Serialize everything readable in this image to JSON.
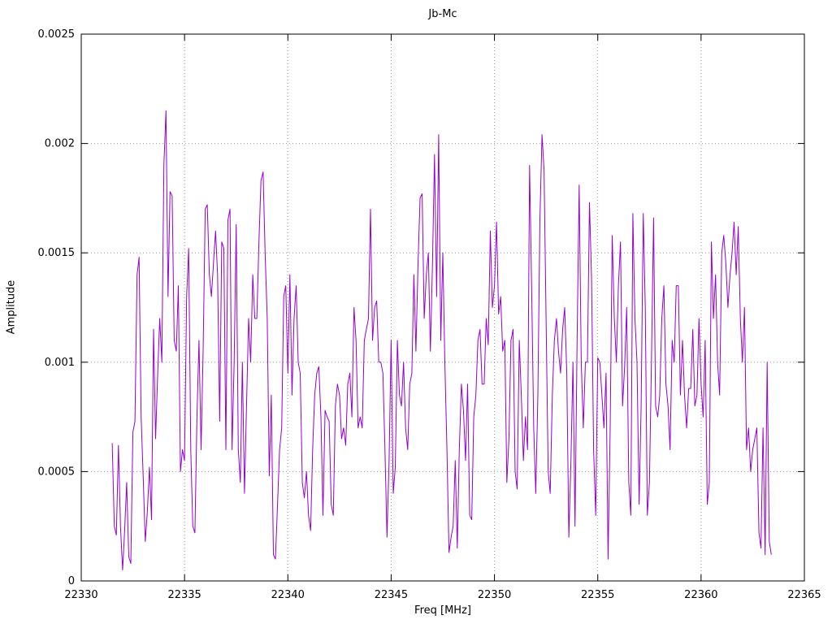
{
  "chart_data": {
    "type": "line",
    "title": "Jb-Mc",
    "xlabel": "Freq [MHz]",
    "ylabel": "Amplitude",
    "xlim": [
      22330,
      22365
    ],
    "ylim": [
      0,
      0.0025
    ],
    "grid": true,
    "grid_style": "dotted",
    "grid_color": "#9a9a9a",
    "line_color": "#9400d3",
    "border_color": "#000000",
    "x_ticks": [
      22330,
      22335,
      22340,
      22345,
      22350,
      22355,
      22360,
      22365
    ],
    "x_tick_labels": [
      "22330",
      "22335",
      "22340",
      "22345",
      "22350",
      "22355",
      "22360",
      "22365"
    ],
    "y_ticks": [
      0,
      0.0005,
      0.001,
      0.0015,
      0.002,
      0.0025
    ],
    "y_tick_labels": [
      "0",
      "0.0005",
      "0.001",
      "0.0015",
      "0.002",
      "0.0025"
    ],
    "legend": "none",
    "series": [
      {
        "name": "Jb-Mc",
        "x_start": 22331.5,
        "x_step": 0.1,
        "values": [
          0.00063,
          0.00025,
          0.00021,
          0.00062,
          0.00025,
          5e-05,
          0.00023,
          0.00045,
          0.00011,
          8e-05,
          0.00068,
          0.00073,
          0.0014,
          0.00148,
          0.00075,
          0.00047,
          0.00018,
          0.00032,
          0.00052,
          0.00028,
          0.00115,
          0.00065,
          0.00095,
          0.0012,
          0.001,
          0.0019,
          0.00215,
          0.0013,
          0.00178,
          0.00176,
          0.0011,
          0.00105,
          0.00135,
          0.0005,
          0.0006,
          0.00055,
          0.0013,
          0.00152,
          0.0006,
          0.00025,
          0.00022,
          0.00075,
          0.0011,
          0.0006,
          0.00105,
          0.0017,
          0.00172,
          0.0014,
          0.0013,
          0.00145,
          0.0016,
          0.0014,
          0.00073,
          0.00155,
          0.00152,
          0.0006,
          0.00165,
          0.0017,
          0.0006,
          0.001,
          0.00163,
          0.0006,
          0.00045,
          0.001,
          0.0004,
          0.0008,
          0.0012,
          0.001,
          0.0014,
          0.0012,
          0.0012,
          0.00155,
          0.00183,
          0.00187,
          0.0015,
          0.0012,
          0.00048,
          0.00085,
          0.00012,
          0.0001,
          0.00035,
          0.0006,
          0.0007,
          0.0013,
          0.00135,
          0.00095,
          0.0014,
          0.00085,
          0.0012,
          0.00135,
          0.001,
          0.00095,
          0.00045,
          0.00038,
          0.0005,
          0.0003,
          0.00023,
          0.0006,
          0.00085,
          0.00095,
          0.00098,
          0.00075,
          0.0003,
          0.00078,
          0.00075,
          0.00073,
          0.00035,
          0.0003,
          0.0008,
          0.0009,
          0.00085,
          0.00065,
          0.0007,
          0.00062,
          0.0009,
          0.00095,
          0.00075,
          0.00125,
          0.0011,
          0.0007,
          0.00075,
          0.0007,
          0.0011,
          0.00115,
          0.0012,
          0.0017,
          0.0011,
          0.00125,
          0.00128,
          0.001,
          0.001,
          0.00095,
          0.0006,
          0.0002,
          0.00055,
          0.0011,
          0.0004,
          0.00052,
          0.0011,
          0.00085,
          0.0008,
          0.001,
          0.0007,
          0.0006,
          0.0009,
          0.00095,
          0.0014,
          0.00105,
          0.00145,
          0.00175,
          0.00177,
          0.0012,
          0.0014,
          0.0015,
          0.00105,
          0.00145,
          0.00195,
          0.0013,
          0.00204,
          0.0011,
          0.0015,
          0.001,
          0.0006,
          0.00013,
          0.0002,
          0.00025,
          0.00055,
          0.00015,
          0.0006,
          0.0009,
          0.00078,
          0.00055,
          0.0009,
          0.0003,
          0.00028,
          0.00075,
          0.00085,
          0.0011,
          0.00115,
          0.0009,
          0.0009,
          0.0012,
          0.00108,
          0.0016,
          0.00125,
          0.00135,
          0.00164,
          0.00122,
          0.0013,
          0.00105,
          0.0011,
          0.00045,
          0.00065,
          0.0011,
          0.00115,
          0.0005,
          0.00042,
          0.0011,
          0.00085,
          0.00055,
          0.00075,
          0.0006,
          0.0019,
          0.00135,
          0.0007,
          0.0004,
          0.00085,
          0.00165,
          0.00204,
          0.00188,
          0.0012,
          0.0005,
          0.0004,
          0.00085,
          0.0011,
          0.0012,
          0.00105,
          0.00095,
          0.00115,
          0.00125,
          0.00095,
          0.0002,
          0.00055,
          0.001,
          0.00025,
          0.0011,
          0.00181,
          0.001,
          0.0007,
          0.001,
          0.001,
          0.00173,
          0.00138,
          0.0006,
          0.0003,
          0.00102,
          0.001,
          0.00085,
          0.0007,
          0.00095,
          0.0001,
          0.0007,
          0.00158,
          0.0012,
          0.001,
          0.00135,
          0.00155,
          0.0008,
          0.00098,
          0.00125,
          0.00045,
          0.0003,
          0.00168,
          0.0012,
          0.001,
          0.00035,
          0.0008,
          0.00168,
          0.00125,
          0.0003,
          0.00045,
          0.001,
          0.00166,
          0.0008,
          0.00075,
          0.00085,
          0.0012,
          0.00135,
          0.0009,
          0.0008,
          0.0006,
          0.0011,
          0.001,
          0.00135,
          0.00135,
          0.00085,
          0.0011,
          0.00085,
          0.0007,
          0.00088,
          0.00088,
          0.00115,
          0.0008,
          0.00085,
          0.0012,
          0.0009,
          0.00075,
          0.0011,
          0.00035,
          0.00045,
          0.00155,
          0.0012,
          0.0014,
          0.001,
          0.00085,
          0.0015,
          0.00158,
          0.00145,
          0.00125,
          0.0014,
          0.0015,
          0.00164,
          0.0014,
          0.00162,
          0.0012,
          0.001,
          0.00125,
          0.0006,
          0.0007,
          0.0005,
          0.0006,
          0.00065,
          0.0007,
          0.00022,
          0.00015,
          0.0007,
          0.00012,
          0.001,
          0.00018,
          0.00012
        ]
      }
    ]
  }
}
